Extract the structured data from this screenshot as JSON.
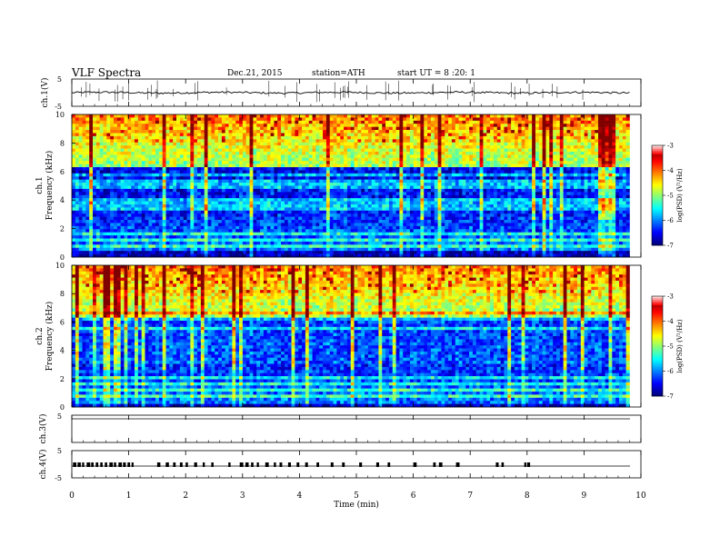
{
  "header": {
    "title": "VLF  Spectra",
    "date": "Dec.21, 2015",
    "station": "station=ATH",
    "start": "start  UT  =   8  :20: 1"
  },
  "chart_data": [
    {
      "type": "line",
      "id": "ch1",
      "ylabel": "ch.1(V)",
      "ylim": [
        -5,
        5
      ],
      "yticks": [
        "5",
        "-5"
      ],
      "baseline": 0,
      "noise_amp": 0.35,
      "spike_count": 45
    },
    {
      "type": "heatmap",
      "id": "spec1",
      "ylabel_top": "ch.1",
      "ylabel": "Frequency  (kHz)",
      "ylim": [
        0,
        10
      ],
      "yticks": [
        "0",
        "2",
        "4",
        "6",
        "8",
        "10"
      ],
      "colorbar": {
        "label": "log(PSD) (V²/Hz)",
        "ticks": [
          "-3",
          "-4",
          "-5",
          "-6",
          "-7"
        ],
        "range": [
          -7,
          -3
        ]
      },
      "colors": {
        "low": "#000080",
        "mid": "#00c0ff",
        "high": "#ff0000"
      }
    },
    {
      "type": "heatmap",
      "id": "spec2",
      "ylabel_top": "ch.2",
      "ylabel": "Frequency  (kHz)",
      "ylim": [
        0,
        10
      ],
      "yticks": [
        "0",
        "2",
        "4",
        "6",
        "8",
        "10"
      ],
      "colorbar": {
        "label": "log(PSD) (V²/Hz)",
        "ticks": [
          "-3",
          "-4",
          "-5",
          "-6",
          "-7"
        ],
        "range": [
          -7,
          -3
        ]
      }
    },
    {
      "type": "line",
      "id": "ch3",
      "ylabel": "ch.3(V)",
      "ylim": [
        -5,
        5
      ],
      "yticks": [
        "5"
      ],
      "baseline": 0
    },
    {
      "type": "line",
      "id": "ch4",
      "ylabel": "ch.4(V)",
      "ylim": [
        -5,
        5
      ],
      "yticks": [
        "5",
        "-5"
      ],
      "baseline": 0
    }
  ],
  "xaxis": {
    "label": "Time  (min)",
    "ticks": [
      "0",
      "1",
      "2",
      "3",
      "4",
      "5",
      "6",
      "7",
      "8",
      "9",
      "10"
    ],
    "xlim": [
      0,
      10
    ],
    "data_end": 9.8
  }
}
